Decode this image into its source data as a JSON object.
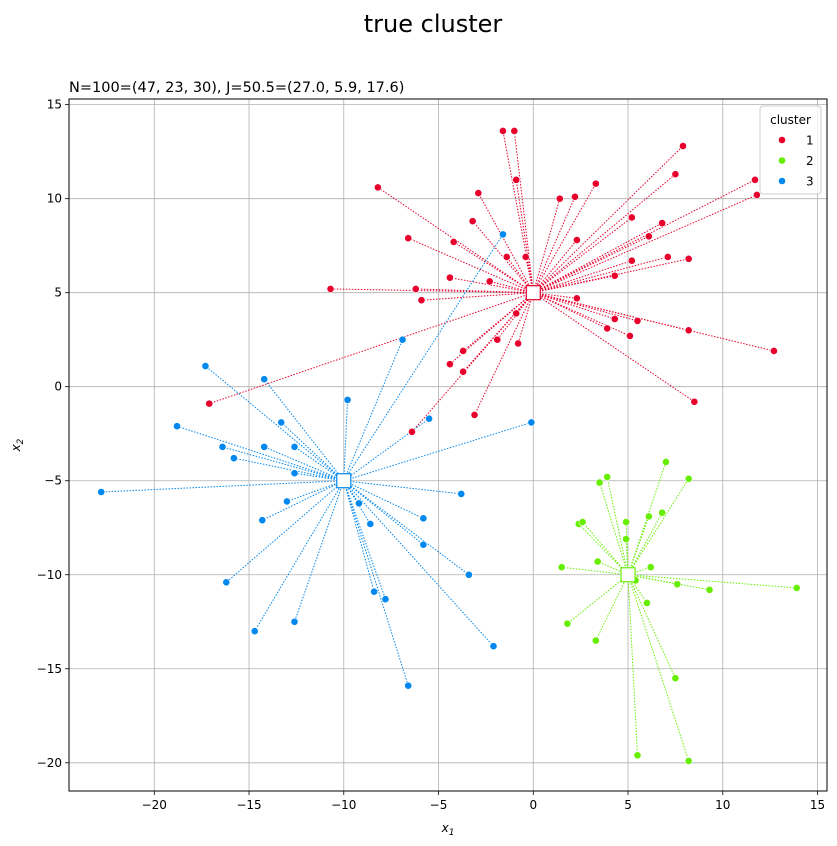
{
  "figure": {
    "suptitle": "true cluster",
    "subtitle": "N=100=(47, 23, 30), J=50.5=(27.0, 5.9, 17.6)"
  },
  "chart_data": {
    "type": "scatter",
    "title": "N=100=(47, 23, 30), J=50.5=(27.0, 5.9, 17.6)",
    "xlabel": "x",
    "xlabel_sub": "1",
    "ylabel": "x",
    "ylabel_sub": "2",
    "xlim": [
      -24.5,
      15.5
    ],
    "ylim": [
      -21.5,
      15.3
    ],
    "xticks": [
      -20,
      -15,
      -10,
      -5,
      0,
      5,
      10,
      15
    ],
    "yticks": [
      -20,
      -15,
      -10,
      -5,
      0,
      5,
      10,
      15
    ],
    "grid": true,
    "legend": {
      "title": "cluster",
      "placement": "top-right"
    },
    "series": [
      {
        "name": "1",
        "color": "#e8002c",
        "center": [
          0,
          5
        ],
        "points": [
          [
            -1.6,
            13.6
          ],
          [
            -1.0,
            13.6
          ],
          [
            -0.9,
            11.0
          ],
          [
            -0.4,
            6.9
          ],
          [
            -1.4,
            6.9
          ],
          [
            -2.9,
            10.3
          ],
          [
            -3.2,
            8.8
          ],
          [
            -4.2,
            7.7
          ],
          [
            -8.2,
            10.6
          ],
          [
            -6.6,
            7.9
          ],
          [
            -10.7,
            5.2
          ],
          [
            -6.2,
            5.2
          ],
          [
            -5.9,
            4.6
          ],
          [
            -4.4,
            5.8
          ],
          [
            -2.3,
            5.6
          ],
          [
            -0.9,
            3.9
          ],
          [
            -1.9,
            2.5
          ],
          [
            -0.8,
            2.3
          ],
          [
            -3.7,
            1.9
          ],
          [
            -4.4,
            1.2
          ],
          [
            -3.7,
            0.8
          ],
          [
            -17.1,
            -0.9
          ],
          [
            -3.1,
            -1.5
          ],
          [
            -6.4,
            -2.4
          ],
          [
            1.4,
            10.0
          ],
          [
            2.2,
            10.1
          ],
          [
            3.3,
            10.8
          ],
          [
            2.3,
            7.8
          ],
          [
            5.2,
            9.0
          ],
          [
            6.1,
            8.0
          ],
          [
            6.8,
            8.7
          ],
          [
            7.5,
            11.3
          ],
          [
            7.9,
            12.8
          ],
          [
            11.7,
            11.0
          ],
          [
            11.8,
            10.2
          ],
          [
            5.2,
            6.7
          ],
          [
            7.1,
            6.9
          ],
          [
            8.2,
            6.8
          ],
          [
            4.3,
            5.9
          ],
          [
            2.3,
            4.7
          ],
          [
            4.3,
            3.6
          ],
          [
            5.5,
            3.5
          ],
          [
            3.9,
            3.1
          ],
          [
            5.1,
            2.7
          ],
          [
            8.2,
            3.0
          ],
          [
            12.7,
            1.9
          ],
          [
            8.5,
            -0.8
          ]
        ]
      },
      {
        "name": "2",
        "color": "#66ee00",
        "center": [
          5,
          -10
        ],
        "points": [
          [
            3.5,
            -5.1
          ],
          [
            3.9,
            -4.8
          ],
          [
            4.9,
            -7.2
          ],
          [
            4.9,
            -8.1
          ],
          [
            2.4,
            -7.3
          ],
          [
            2.6,
            -7.2
          ],
          [
            3.4,
            -9.3
          ],
          [
            1.5,
            -9.6
          ],
          [
            1.8,
            -12.6
          ],
          [
            3.3,
            -13.5
          ],
          [
            7.0,
            -4.0
          ],
          [
            8.2,
            -4.9
          ],
          [
            6.8,
            -6.7
          ],
          [
            6.1,
            -6.9
          ],
          [
            6.2,
            -9.6
          ],
          [
            5.4,
            -10.3
          ],
          [
            7.6,
            -10.5
          ],
          [
            9.3,
            -10.8
          ],
          [
            13.9,
            -10.7
          ],
          [
            6.0,
            -11.5
          ],
          [
            7.5,
            -15.5
          ],
          [
            5.5,
            -19.6
          ],
          [
            8.2,
            -19.9
          ]
        ]
      },
      {
        "name": "3",
        "color": "#0088ee",
        "center": [
          -10,
          -5
        ],
        "points": [
          [
            -1.6,
            8.1
          ],
          [
            -6.9,
            2.5
          ],
          [
            -17.3,
            1.1
          ],
          [
            -14.2,
            0.4
          ],
          [
            -9.8,
            -0.7
          ],
          [
            -18.8,
            -2.1
          ],
          [
            -13.3,
            -1.9
          ],
          [
            -5.5,
            -1.7
          ],
          [
            -16.4,
            -3.2
          ],
          [
            -15.8,
            -3.8
          ],
          [
            -14.2,
            -3.2
          ],
          [
            -12.6,
            -3.2
          ],
          [
            -0.1,
            -1.9
          ],
          [
            -12.6,
            -4.6
          ],
          [
            -22.8,
            -5.6
          ],
          [
            -13.0,
            -6.1
          ],
          [
            -9.2,
            -6.2
          ],
          [
            -3.8,
            -5.7
          ],
          [
            -14.3,
            -7.1
          ],
          [
            -8.6,
            -7.3
          ],
          [
            -5.8,
            -7.0
          ],
          [
            -5.8,
            -8.4
          ],
          [
            -16.2,
            -10.4
          ],
          [
            -3.4,
            -10.0
          ],
          [
            -8.4,
            -10.9
          ],
          [
            -7.8,
            -11.3
          ],
          [
            -12.6,
            -12.5
          ],
          [
            -14.7,
            -13.0
          ],
          [
            -2.1,
            -13.8
          ],
          [
            -6.6,
            -15.9
          ]
        ]
      }
    ]
  }
}
